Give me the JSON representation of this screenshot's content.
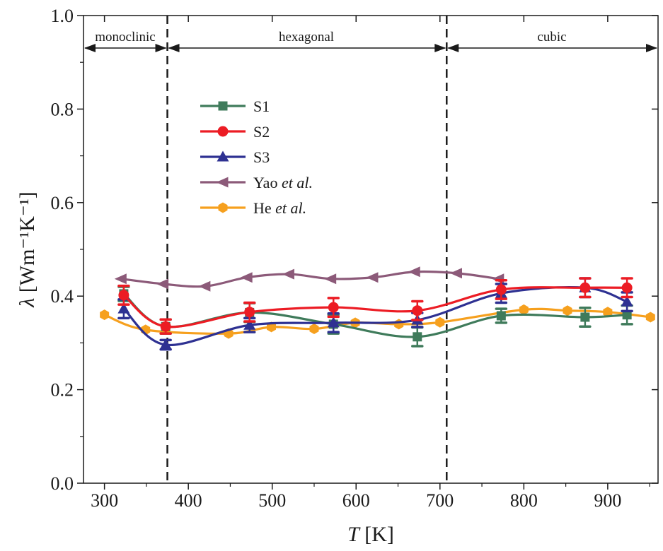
{
  "chart_data": {
    "type": "line",
    "xlabel": {
      "symbol": "T",
      "unit": "[K]"
    },
    "ylabel": {
      "symbol": "λ",
      "unit": "[Wm-1K-1]"
    },
    "xlim": [
      275,
      960
    ],
    "ylim": [
      0.0,
      1.0
    ],
    "xticks": [
      300,
      400,
      500,
      600,
      700,
      800,
      900
    ],
    "yticks": [
      "0.0",
      "0.2",
      "0.4",
      "0.6",
      "0.8",
      "1.0"
    ],
    "grid": false,
    "legend_position": "upper-left-center",
    "phase_boundaries": [
      375,
      708
    ],
    "phases": [
      "monoclinic",
      "hexagonal",
      "cubic"
    ],
    "series": [
      {
        "name": "S1",
        "color": "#3f7b5b",
        "marker": "square",
        "x": [
          323,
          373,
          473,
          573,
          673,
          773,
          873,
          923
        ],
        "y": [
          0.405,
          0.335,
          0.365,
          0.34,
          0.313,
          0.358,
          0.355,
          0.36
        ],
        "err": [
          0.015,
          0.015,
          0.02,
          0.02,
          0.02,
          0.015,
          0.02,
          0.02
        ]
      },
      {
        "name": "S2",
        "color": "#ec1c24",
        "marker": "circle",
        "x": [
          323,
          373,
          473,
          573,
          673,
          773,
          873,
          923
        ],
        "y": [
          0.402,
          0.335,
          0.366,
          0.376,
          0.369,
          0.414,
          0.418,
          0.418
        ],
        "err": [
          0.02,
          0.015,
          0.02,
          0.02,
          0.02,
          0.02,
          0.02,
          0.02
        ]
      },
      {
        "name": "S3",
        "color": "#2e3192",
        "marker": "triangle-up",
        "x": [
          323,
          373,
          473,
          573,
          673,
          773,
          873,
          923
        ],
        "y": [
          0.373,
          0.296,
          0.338,
          0.343,
          0.349,
          0.406,
          0.418,
          0.388
        ],
        "err": [
          0.02,
          0.01,
          0.015,
          0.02,
          0.015,
          0.02,
          0.02,
          0.02
        ]
      },
      {
        "name": "Yao",
        "name_suffix": "et al.",
        "color": "#8c5a79",
        "marker": "triangle-left",
        "x": [
          320,
          370,
          420,
          470,
          520,
          570,
          620,
          670,
          720,
          770
        ],
        "y": [
          0.437,
          0.426,
          0.421,
          0.44,
          0.447,
          0.437,
          0.44,
          0.452,
          0.449,
          0.437
        ]
      },
      {
        "name": "He",
        "name_suffix": "et al.",
        "color": "#f6a01e",
        "marker": "hexagon",
        "x": [
          300,
          349,
          448,
          499,
          550,
          599,
          651,
          700,
          800,
          852,
          900,
          951
        ],
        "y": [
          0.36,
          0.328,
          0.32,
          0.334,
          0.33,
          0.343,
          0.34,
          0.344,
          0.371,
          0.369,
          0.366,
          0.355
        ]
      }
    ]
  }
}
